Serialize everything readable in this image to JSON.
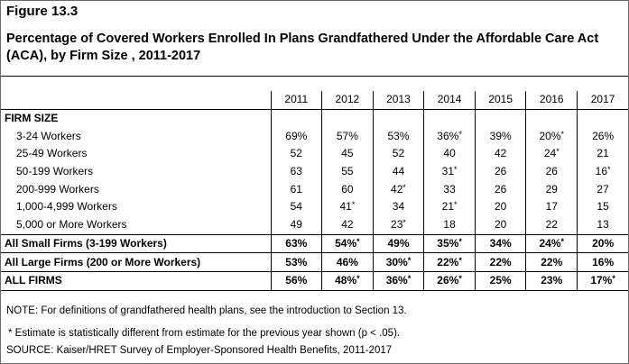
{
  "figure_label": "Figure 13.3",
  "title": "Percentage of Covered Workers Enrolled In Plans Grandfathered Under the Affordable Care Act (ACA), by Firm Size , 2011-2017",
  "years": [
    "2011",
    "2012",
    "2013",
    "2014",
    "2015",
    "2016",
    "2017"
  ],
  "group_label": "FIRM SIZE",
  "rows": [
    {
      "label": "3-24 Workers",
      "values": [
        "69%",
        "57%",
        "53%",
        "36%",
        "39%",
        "20%",
        "26%"
      ],
      "stars": [
        false,
        false,
        false,
        true,
        false,
        true,
        false
      ]
    },
    {
      "label": "25-49 Workers",
      "values": [
        "52",
        "45",
        "52",
        "40",
        "42",
        "24",
        "21"
      ],
      "stars": [
        false,
        false,
        false,
        false,
        false,
        true,
        false
      ]
    },
    {
      "label": "50-199 Workers",
      "values": [
        "63",
        "55",
        "44",
        "31",
        "26",
        "26",
        "16"
      ],
      "stars": [
        false,
        false,
        false,
        true,
        false,
        false,
        true
      ]
    },
    {
      "label": "200-999 Workers",
      "values": [
        "61",
        "60",
        "42",
        "33",
        "26",
        "29",
        "27"
      ],
      "stars": [
        false,
        false,
        true,
        false,
        false,
        false,
        false
      ]
    },
    {
      "label": "1,000-4,999 Workers",
      "values": [
        "54",
        "41",
        "34",
        "21",
        "20",
        "17",
        "15"
      ],
      "stars": [
        false,
        true,
        false,
        true,
        false,
        false,
        false
      ]
    },
    {
      "label": "5,000 or More Workers",
      "values": [
        "49",
        "42",
        "23",
        "18",
        "20",
        "22",
        "13"
      ],
      "stars": [
        false,
        false,
        true,
        false,
        false,
        false,
        false
      ]
    }
  ],
  "aggregates": [
    {
      "label": "All Small Firms (3-199 Workers)",
      "values": [
        "63%",
        "54%",
        "49%",
        "35%",
        "34%",
        "24%",
        "20%"
      ],
      "stars": [
        false,
        true,
        false,
        true,
        false,
        true,
        false
      ]
    },
    {
      "label": "All Large Firms (200 or More Workers)",
      "values": [
        "53%",
        "46%",
        "30%",
        "22%",
        "22%",
        "22%",
        "16%"
      ],
      "stars": [
        false,
        false,
        true,
        true,
        false,
        false,
        false
      ]
    }
  ],
  "all_firms": {
    "label": "ALL FIRMS",
    "values": [
      "56%",
      "48%",
      "36%",
      "26%",
      "25%",
      "23%",
      "17%"
    ],
    "stars": [
      false,
      true,
      true,
      true,
      false,
      false,
      true
    ]
  },
  "star_symbol": "*",
  "note_definitions": "NOTE: For definitions of grandfathered health plans, see the introduction to Section 13.",
  "note_estimate": "* Estimate is statistically different from estimate for the previous year shown (p < .05).",
  "source": "SOURCE: Kaiser/HRET Survey of Employer-Sponsored Health Benefits, 2011-2017"
}
